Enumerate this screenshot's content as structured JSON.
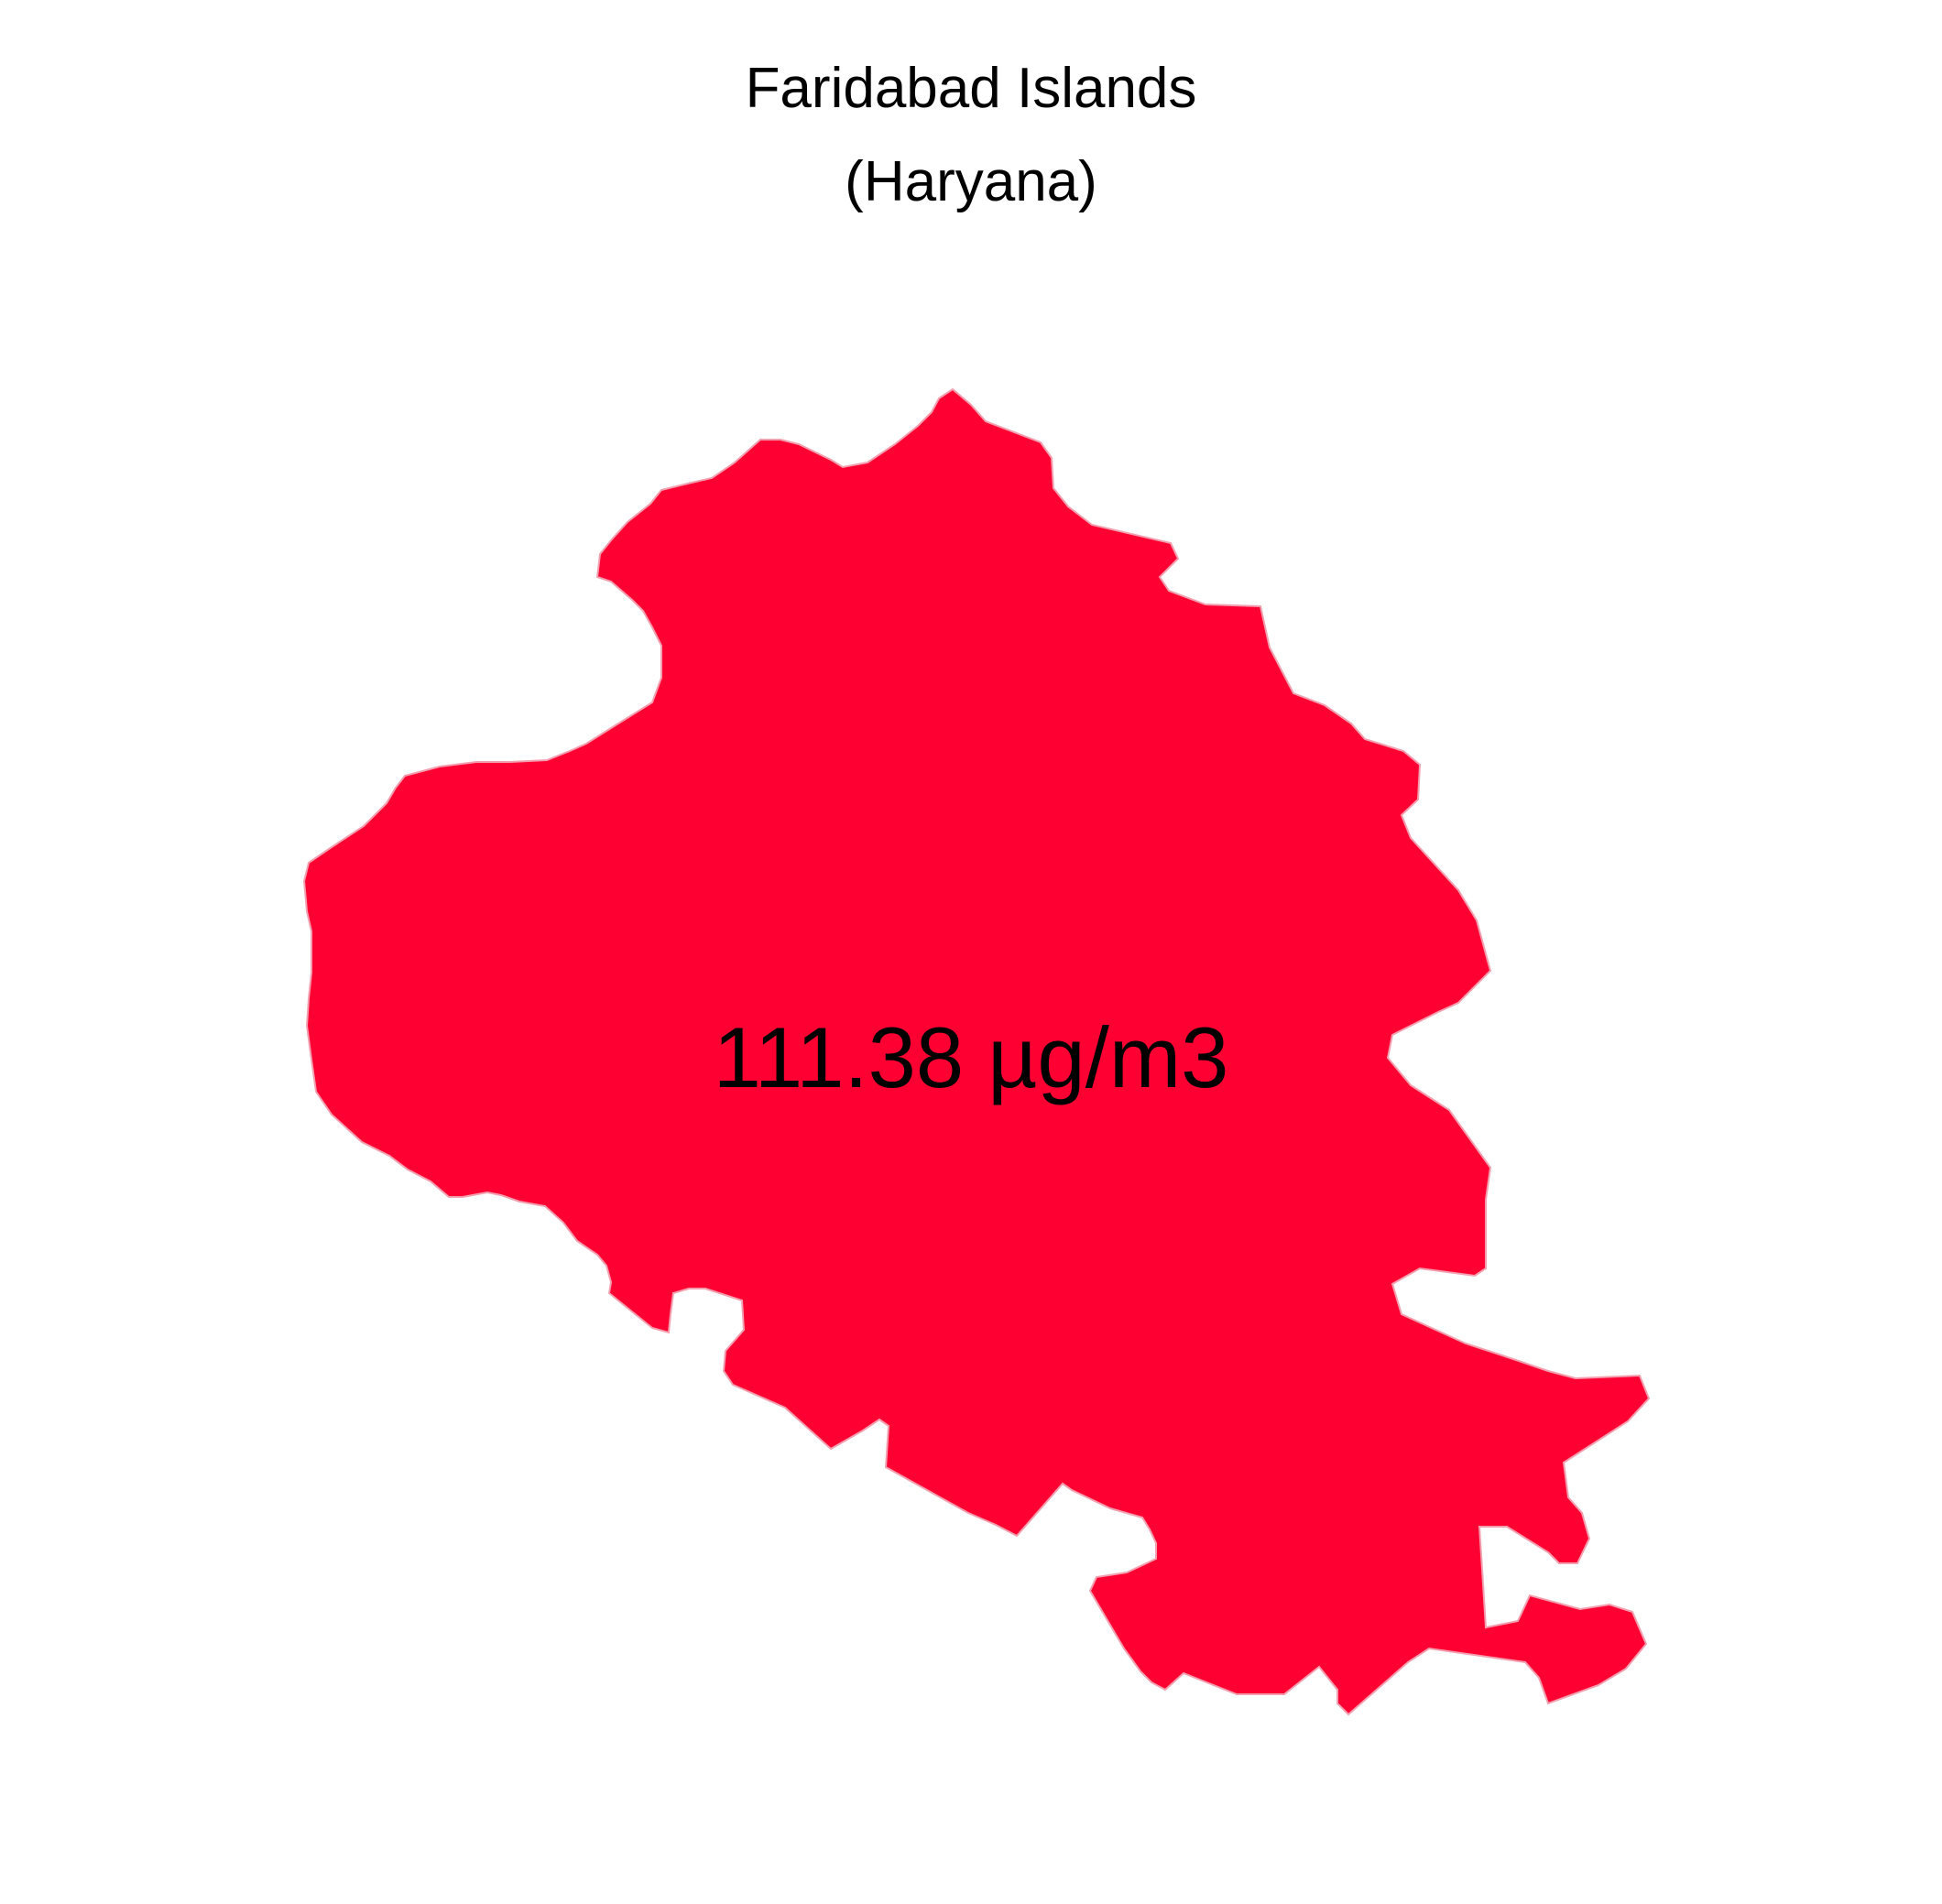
{
  "map": {
    "title_line1": "Faridabad Islands",
    "title_line2": "(Haryana)",
    "region": "Faridabad Islands",
    "state": "Haryana",
    "value_label": "111.38 µg/m3",
    "fill_color": "#FF0033",
    "stroke_color": "#F2A0B0",
    "background_color": "#FFFFFF"
  }
}
